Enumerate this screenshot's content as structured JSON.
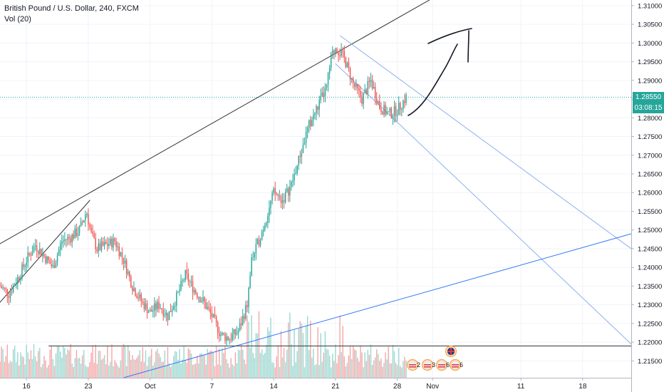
{
  "header": {
    "title": "British Pound / U.S. Dollar, 240, FXCM",
    "indicator": "Vol (20)"
  },
  "price_tag": {
    "price": "1.28550",
    "countdown": "03:08:15"
  },
  "events": [
    {
      "label": "2",
      "flag": "us"
    },
    {
      "label": "3",
      "flag": "us"
    },
    {
      "label": "6",
      "flag": "us"
    },
    {
      "label": "6",
      "flag": "us"
    },
    {
      "label": "",
      "flag": "uk"
    }
  ],
  "colors": {
    "up": "#26a69a",
    "down": "#ef5350",
    "vol_up": "#9ed8d1",
    "vol_down": "#f5a9a9",
    "trend_black": "#333333",
    "trend_blue": "#3179f5",
    "channel_blue": "#8fb0ee",
    "price_line": "#26a69a"
  },
  "chart_data": {
    "type": "candlestick",
    "title": "British Pound / U.S. Dollar, 240, FXCM",
    "ylim": [
      1.2105,
      1.3115
    ],
    "y_ticks": [
      "1.31000",
      "1.30500",
      "1.30000",
      "1.29500",
      "1.29000",
      "1.28500",
      "1.28000",
      "1.27500",
      "1.27000",
      "1.26500",
      "1.26000",
      "1.25500",
      "1.25000",
      "1.24500",
      "1.24000",
      "1.23500",
      "1.23000",
      "1.22500",
      "1.22000",
      "1.21500"
    ],
    "x_ticks": [
      {
        "label": "16",
        "day": 16
      },
      {
        "label": "23",
        "day": 23
      },
      {
        "label": "Oct",
        "day": 30
      },
      {
        "label": "7",
        "day": 37
      },
      {
        "label": "14",
        "day": 44
      },
      {
        "label": "21",
        "day": 51
      },
      {
        "label": "28",
        "day": 58
      },
      {
        "label": "Nov",
        "day": 62
      },
      {
        "label": "11",
        "day": 72
      },
      {
        "label": "18",
        "day": 79
      }
    ],
    "x_range_days": [
      13.0,
      84.5
    ],
    "current_price": 1.2855,
    "close_path": [
      [
        13.0,
        1.235
      ],
      [
        14.0,
        1.233
      ],
      [
        15.0,
        1.237
      ],
      [
        16.0,
        1.242
      ],
      [
        17.0,
        1.246
      ],
      [
        18.0,
        1.243
      ],
      [
        19.0,
        1.24
      ],
      [
        20.0,
        1.247
      ],
      [
        21.0,
        1.248
      ],
      [
        22.0,
        1.25
      ],
      [
        22.8,
        1.255
      ],
      [
        23.3,
        1.249
      ],
      [
        24.0,
        1.245
      ],
      [
        25.0,
        1.246
      ],
      [
        26.0,
        1.247
      ],
      [
        27.0,
        1.242
      ],
      [
        28.0,
        1.235
      ],
      [
        29.0,
        1.231
      ],
      [
        30.0,
        1.228
      ],
      [
        31.0,
        1.23
      ],
      [
        32.0,
        1.227
      ],
      [
        33.0,
        1.232
      ],
      [
        34.0,
        1.238
      ],
      [
        35.0,
        1.234
      ],
      [
        36.0,
        1.231
      ],
      [
        37.0,
        1.227
      ],
      [
        38.0,
        1.222
      ],
      [
        39.0,
        1.221
      ],
      [
        40.0,
        1.223
      ],
      [
        41.0,
        1.23
      ],
      [
        41.5,
        1.242
      ],
      [
        42.0,
        1.245
      ],
      [
        43.0,
        1.252
      ],
      [
        44.0,
        1.26
      ],
      [
        45.0,
        1.258
      ],
      [
        46.0,
        1.262
      ],
      [
        47.0,
        1.27
      ],
      [
        48.0,
        1.278
      ],
      [
        49.0,
        1.283
      ],
      [
        50.0,
        1.288
      ],
      [
        50.5,
        1.296
      ],
      [
        51.0,
        1.299
      ],
      [
        52.0,
        1.296
      ],
      [
        53.0,
        1.289
      ],
      [
        54.0,
        1.285
      ],
      [
        55.0,
        1.29
      ],
      [
        56.0,
        1.283
      ],
      [
        57.0,
        1.281
      ],
      [
        58.0,
        1.282
      ],
      [
        59.0,
        1.2855
      ]
    ],
    "volume_ylim": [
      0,
      1
    ],
    "trendlines": [
      {
        "name": "rising-wedge-upper",
        "color": "black",
        "points": [
          [
            12.0,
            1.245
          ],
          [
            65.0,
            1.316
          ]
        ]
      },
      {
        "name": "rising-wedge-lower",
        "color": "black",
        "points": [
          [
            12.0,
            1.228
          ],
          [
            23.2,
            1.258
          ]
        ]
      },
      {
        "name": "channel-upper",
        "color": "channel_blue",
        "points": [
          [
            51.5,
            1.302
          ],
          [
            84.5,
            1.245
          ]
        ]
      },
      {
        "name": "channel-lower",
        "color": "channel_blue",
        "points": [
          [
            51.0,
            1.2945
          ],
          [
            84.5,
            1.2195
          ]
        ]
      },
      {
        "name": "support-rising",
        "color": "trend_blue",
        "points": [
          [
            27.0,
            1.2105
          ],
          [
            84.5,
            1.249
          ]
        ]
      },
      {
        "name": "horizontal-support",
        "color": "black",
        "points": [
          [
            18.5,
            1.219
          ],
          [
            84.5,
            1.219
          ]
        ]
      }
    ],
    "annotation": "hand-drawn arrow pointing up"
  }
}
